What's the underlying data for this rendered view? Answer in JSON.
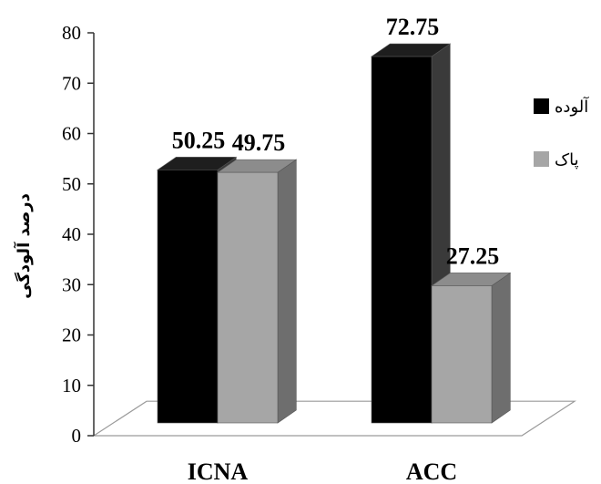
{
  "chart_data": {
    "type": "bar",
    "categories": [
      "ICNA",
      "ACC"
    ],
    "series": [
      {
        "name": "آلوده",
        "values": [
          50.25,
          72.75
        ],
        "color": "#000000",
        "side_color": "#3a3a3a",
        "top_color": "#1e1e1e"
      },
      {
        "name": "پاک",
        "values": [
          49.75,
          27.25
        ],
        "color": "#a6a6a6",
        "side_color": "#6e6e6e",
        "top_color": "#8c8c8c"
      }
    ],
    "data_labels": [
      [
        "50.25",
        "72.75"
      ],
      [
        "49.75",
        "27.25"
      ]
    ],
    "ylabel": "درصد آلودگی",
    "xlabel": "",
    "ylim": [
      0,
      80
    ],
    "yticks": [
      0,
      10,
      20,
      30,
      40,
      50,
      60,
      70,
      80
    ],
    "style": "3d-clustered-column",
    "legend_position": "right",
    "grid": false
  }
}
